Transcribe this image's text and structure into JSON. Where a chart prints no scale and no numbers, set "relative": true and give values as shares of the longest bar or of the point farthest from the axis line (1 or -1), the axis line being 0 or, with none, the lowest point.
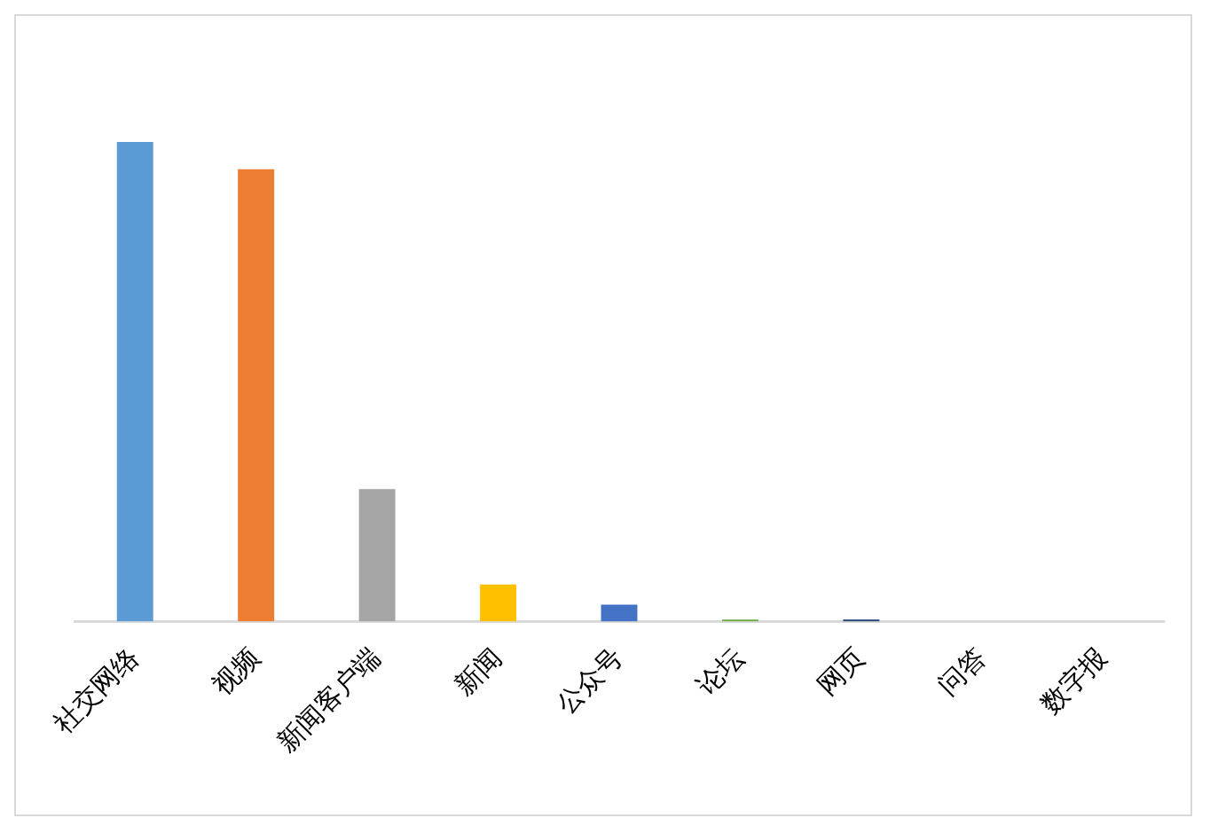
{
  "chart_data": {
    "type": "bar",
    "relative": true,
    "categories": [
      "社交网络",
      "视频",
      "新闻客户端",
      "新闻",
      "公众号",
      "论坛",
      "网页",
      "问答",
      "数字报"
    ],
    "values": [
      1,
      0.943,
      0.276,
      0.077,
      0.035,
      0.004,
      0.004,
      0,
      0
    ],
    "colors": [
      "#5b9bd5",
      "#ed7d31",
      "#a5a5a5",
      "#ffc000",
      "#4472c4",
      "#70ad47",
      "#264478",
      "#9e480e",
      "#636363"
    ],
    "grid": false,
    "legend": false
  }
}
